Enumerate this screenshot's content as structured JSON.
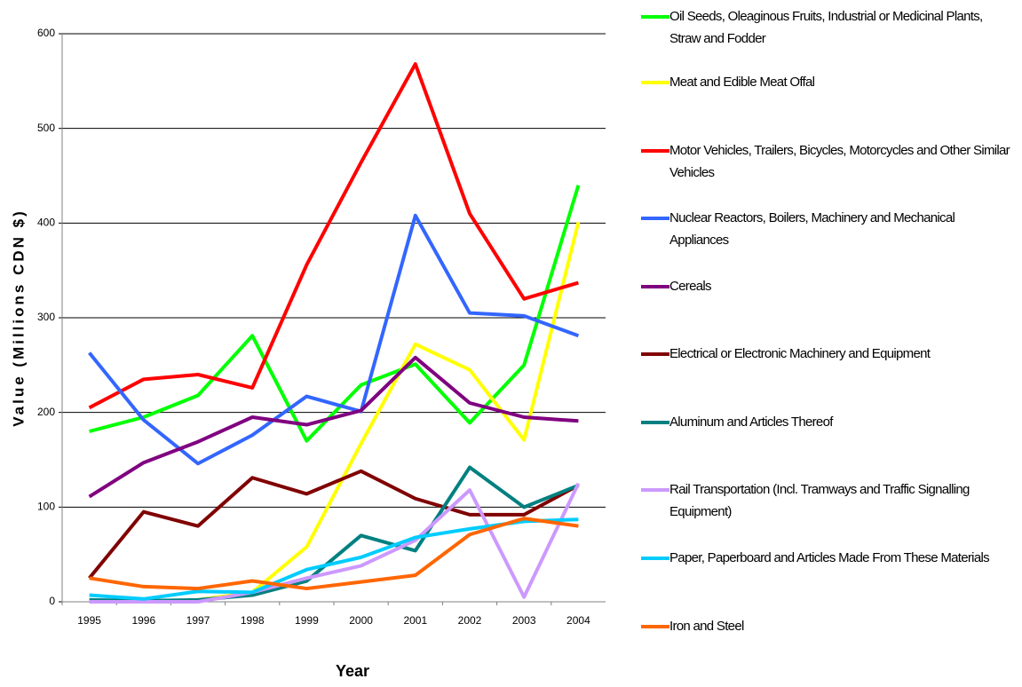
{
  "chart_data": {
    "type": "line",
    "x_label": "Year",
    "y_label": "Value (Millions CDN $)",
    "categories": [
      "1995",
      "1996",
      "1997",
      "1998",
      "1999",
      "2000",
      "2001",
      "2002",
      "2003",
      "2004"
    ],
    "ylim": [
      0,
      600
    ],
    "yticks": [
      0,
      100,
      200,
      300,
      400,
      500,
      600
    ],
    "grid": true,
    "series": [
      {
        "name": "Oil Seeds, Oleaginous Fruits, Industrial or Medicinal Plants, Straw and Fodder",
        "color": "#00ff00",
        "values": [
          180,
          195,
          218,
          281,
          170,
          229,
          251,
          189,
          250,
          440
        ]
      },
      {
        "name": "Meat and Edible Meat Offal",
        "color": "#ffff00",
        "values": [
          0,
          0,
          2,
          10,
          58,
          167,
          272,
          245,
          171,
          401
        ]
      },
      {
        "name": "Motor Vehicles, Trailers, Bicycles, Motorcycles and Other Similar Vehicles",
        "color": "#ff0000",
        "values": [
          205,
          235,
          240,
          226,
          356,
          464,
          568,
          410,
          320,
          337
        ]
      },
      {
        "name": "Nuclear Reactors, Boilers, Machinery and Mechanical Appliances",
        "color": "#3366ff",
        "values": [
          263,
          192,
          146,
          176,
          217,
          201,
          408,
          305,
          302,
          281
        ]
      },
      {
        "name": "Cereals",
        "color": "#800080",
        "values": [
          111,
          147,
          169,
          195,
          187,
          202,
          258,
          210,
          195,
          191
        ]
      },
      {
        "name": "Electrical or Electronic Machinery and Equipment",
        "color": "#800000",
        "values": [
          25,
          95,
          80,
          131,
          114,
          138,
          109,
          92,
          92,
          123
        ]
      },
      {
        "name": "Aluminum and Articles Thereof",
        "color": "#008080",
        "values": [
          2,
          1,
          2,
          7,
          22,
          70,
          54,
          142,
          100,
          123
        ]
      },
      {
        "name": "Rail Transportation (Incl. Tramways and Traffic Signalling Equipment)",
        "color": "#cc99ff",
        "values": [
          0,
          0,
          0,
          10,
          25,
          38,
          65,
          118,
          5,
          125
        ]
      },
      {
        "name": "Paper, Paperboard and Articles Made From These Materials",
        "color": "#00ccff",
        "values": [
          7,
          3,
          11,
          10,
          34,
          47,
          68,
          77,
          85,
          87
        ]
      },
      {
        "name": "Iron and Steel",
        "color": "#ff6600",
        "values": [
          25,
          16,
          14,
          22,
          14,
          21,
          28,
          71,
          88,
          80
        ]
      }
    ]
  }
}
